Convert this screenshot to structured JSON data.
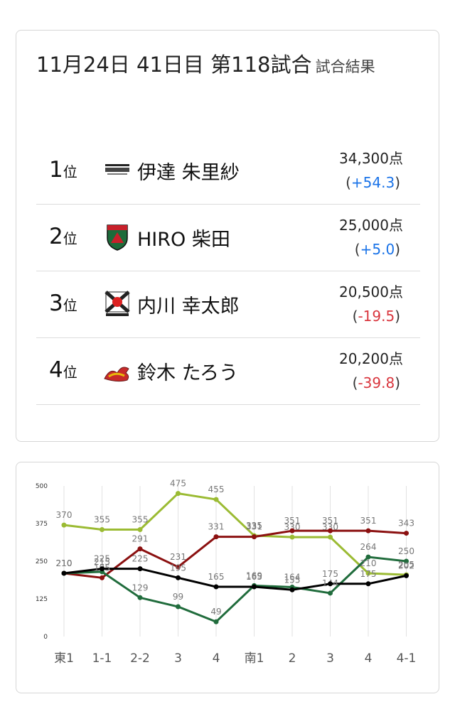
{
  "header": {
    "title": "11月24日  41日目  第118試合",
    "subtitle": "試合結果"
  },
  "rankings": [
    {
      "rank": "1",
      "unit": "位",
      "team_icon": "konami-team-logo",
      "name": "伊達 朱里紗",
      "points": "34,300点",
      "delta": "+54.3",
      "delta_color": "#1a73e8"
    },
    {
      "rank": "2",
      "unit": "位",
      "team_icon": "jets-team-logo",
      "name": "HIRO 柴田",
      "points": "25,000点",
      "delta": "+5.0",
      "delta_color": "#1a73e8"
    },
    {
      "rank": "3",
      "unit": "位",
      "team_icon": "fu-rinkazan-team-logo",
      "name": "内川 幸太郎",
      "points": "20,500点",
      "delta": "-19.5",
      "delta_color": "#d9363e"
    },
    {
      "rank": "4",
      "unit": "位",
      "team_icon": "dragon-team-logo",
      "name": "鈴木 たろう",
      "points": "20,200点",
      "delta": "-39.8",
      "delta_color": "#d9363e"
    }
  ],
  "chart_data": {
    "type": "line",
    "categories": [
      "東1",
      "1-1",
      "2-2",
      "3",
      "4",
      "南1",
      "2",
      "3",
      "4",
      "4-1"
    ],
    "y_ticks": [
      "0",
      "125",
      "250",
      "375",
      "500"
    ],
    "ylim": [
      0,
      500
    ],
    "grid": "vertical",
    "legend": "none",
    "series": [
      {
        "color": "#9bbb33",
        "values": [
          370,
          355,
          355,
          475,
          455,
          335,
          330,
          330,
          210,
          205
        ]
      },
      {
        "color": "#8b1010",
        "values": [
          210,
          195,
          291,
          231,
          331,
          331,
          351,
          351,
          351,
          343
        ]
      },
      {
        "color": "#206c3c",
        "values": [
          210,
          215,
          129,
          99,
          49,
          169,
          164,
          144,
          264,
          250
        ]
      },
      {
        "color": "#000000",
        "values": [
          210,
          225,
          225,
          195,
          165,
          165,
          155,
          175,
          175,
          202
        ]
      }
    ]
  }
}
